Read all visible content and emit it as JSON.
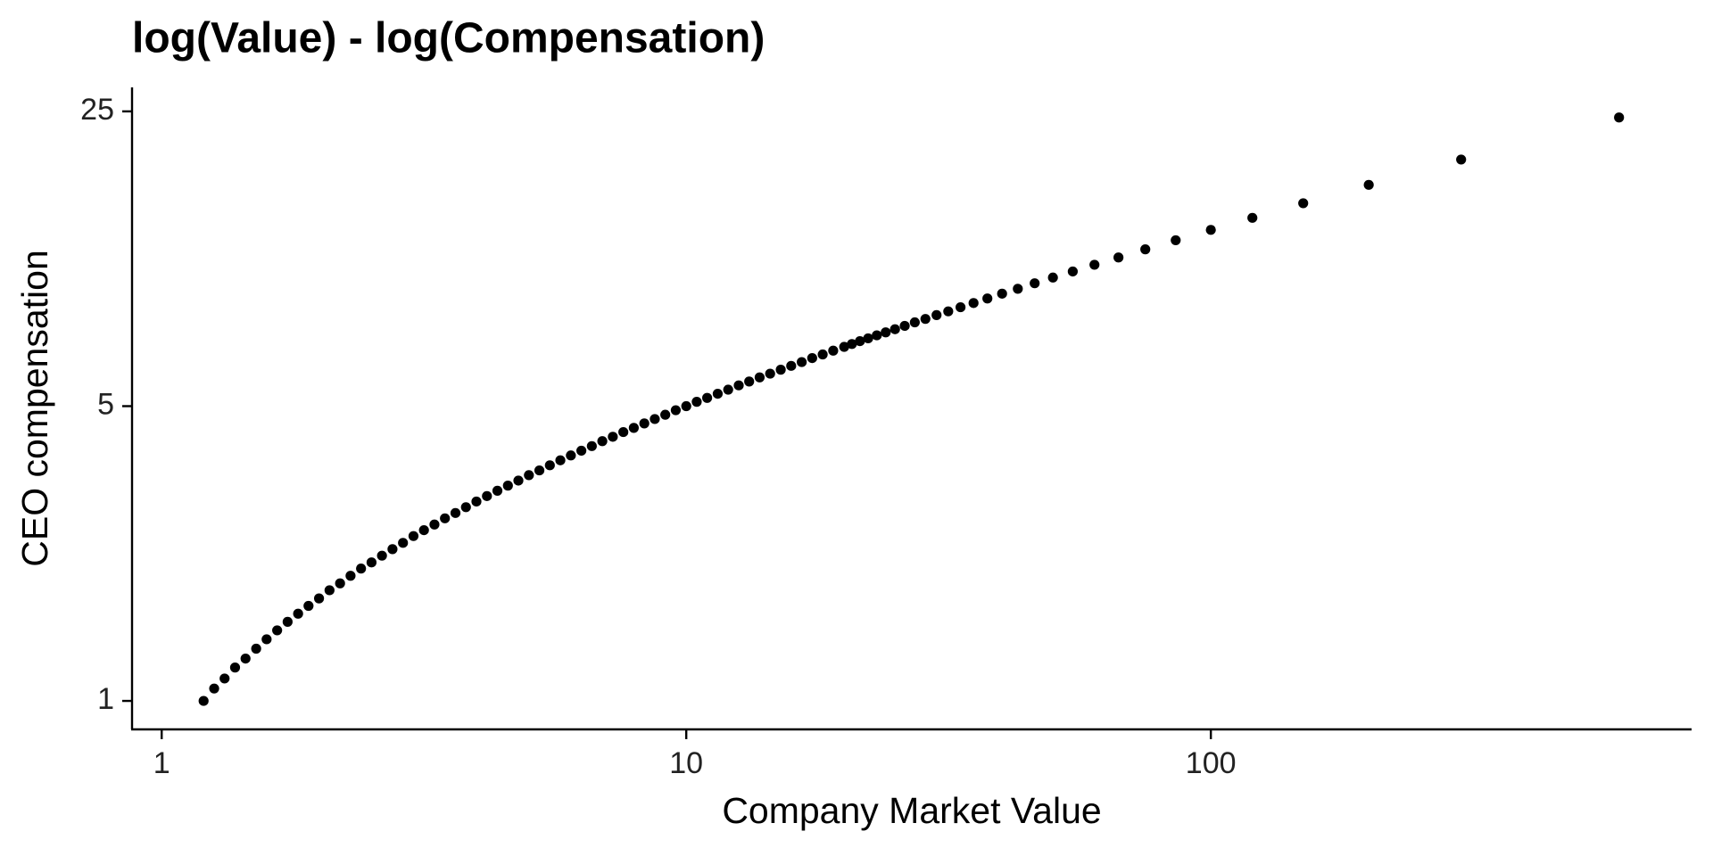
{
  "chart_data": {
    "type": "scatter",
    "title": "log(Value) - log(Compensation)",
    "x_label": "Company Market Value",
    "y_label": "CEO compensation",
    "color": "#000000",
    "xscale": "log",
    "yscale": "log",
    "grid": false,
    "xlim": [
      0.878,
      825
    ],
    "ylim": [
      0.856,
      28.5
    ],
    "xticks": [
      1,
      10,
      100
    ],
    "yticks": [
      1,
      5,
      25
    ],
    "x": [
      1.202,
      1.259,
      1.318,
      1.38,
      1.445,
      1.514,
      1.585,
      1.66,
      1.738,
      1.82,
      1.905,
      1.995,
      2.089,
      2.188,
      2.291,
      2.399,
      2.512,
      2.63,
      2.754,
      2.884,
      3.02,
      3.162,
      3.311,
      3.467,
      3.631,
      3.802,
      3.981,
      4.169,
      4.365,
      4.571,
      4.786,
      5.012,
      5.248,
      5.495,
      5.754,
      6.026,
      6.31,
      6.607,
      6.918,
      7.244,
      7.586,
      7.943,
      8.318,
      8.71,
      9.12,
      9.55,
      10.0,
      10.47,
      10.96,
      11.48,
      12.02,
      12.59,
      13.18,
      13.8,
      14.45,
      15.14,
      15.85,
      16.6,
      17.38,
      18.2,
      19.06,
      20.0,
      20.69,
      21.43,
      22.22,
      23.08,
      24.0,
      25.0,
      26.09,
      27.27,
      28.57,
      30.0,
      31.58,
      33.33,
      35.29,
      37.5,
      40.0,
      42.86,
      46.15,
      50.0,
      54.55,
      60.0,
      66.67,
      75.0,
      85.71,
      100.0,
      120.0,
      150.0,
      200.0,
      300.0,
      600.0
    ],
    "values": [
      1.0,
      1.07,
      1.13,
      1.2,
      1.26,
      1.33,
      1.4,
      1.47,
      1.54,
      1.61,
      1.68,
      1.75,
      1.83,
      1.9,
      1.98,
      2.06,
      2.13,
      2.21,
      2.29,
      2.37,
      2.46,
      2.54,
      2.62,
      2.71,
      2.79,
      2.88,
      2.97,
      3.06,
      3.15,
      3.24,
      3.33,
      3.43,
      3.52,
      3.62,
      3.72,
      3.82,
      3.92,
      4.02,
      4.13,
      4.23,
      4.34,
      4.44,
      4.55,
      4.66,
      4.77,
      4.89,
      5.0,
      5.12,
      5.23,
      5.35,
      5.47,
      5.6,
      5.72,
      5.85,
      5.97,
      6.1,
      6.23,
      6.36,
      6.5,
      6.63,
      6.77,
      6.91,
      7.02,
      7.13,
      7.24,
      7.36,
      7.48,
      7.61,
      7.75,
      7.9,
      8.05,
      8.22,
      8.39,
      8.58,
      8.78,
      9.0,
      9.24,
      9.49,
      9.78,
      10.09,
      10.43,
      10.82,
      11.26,
      11.77,
      12.37,
      13.09,
      13.98,
      15.14,
      16.74,
      19.22,
      24.18
    ]
  }
}
